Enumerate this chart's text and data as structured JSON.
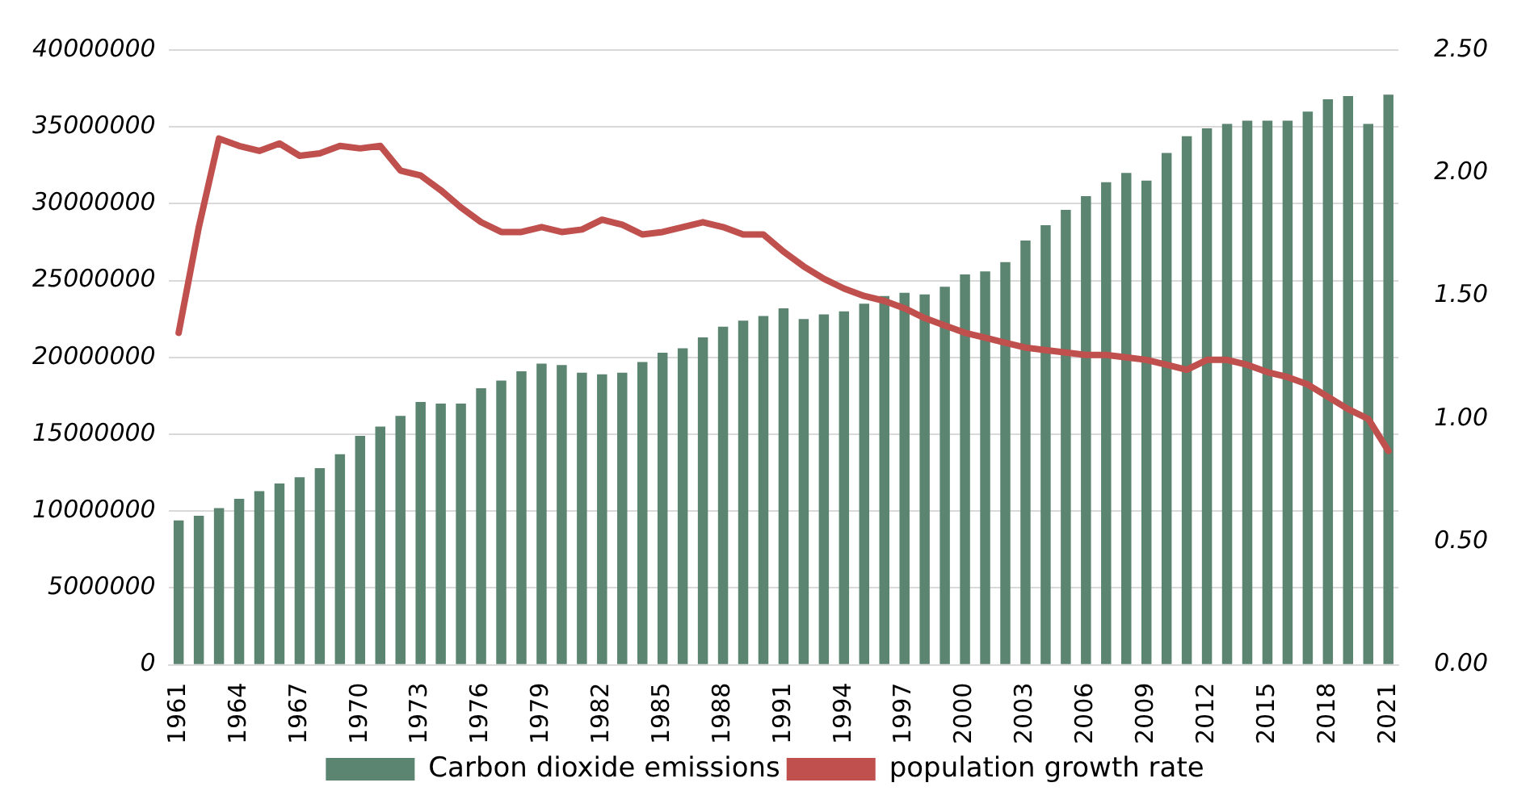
{
  "chart_data": {
    "type": "bar",
    "categories": [
      "1961",
      null,
      null,
      "1964",
      null,
      null,
      "1967",
      null,
      null,
      "1970",
      null,
      null,
      "1973",
      null,
      null,
      "1976",
      null,
      null,
      "1979",
      null,
      null,
      "1982",
      null,
      null,
      "1985",
      null,
      null,
      "1988",
      null,
      null,
      "1991",
      null,
      null,
      "1994",
      null,
      null,
      "1997",
      null,
      null,
      "2000",
      null,
      null,
      "2003",
      null,
      null,
      "2006",
      null,
      null,
      "2009",
      null,
      null,
      "2012",
      null,
      null,
      "2015",
      null,
      null,
      "2018",
      null,
      null,
      "2021"
    ],
    "series": [
      {
        "name": "Carbon dioxide emissions",
        "color": "#5b8570",
        "values": [
          9400000,
          9700000,
          10200000,
          10800000,
          11300000,
          11800000,
          12200000,
          12800000,
          13700000,
          14900000,
          15500000,
          16200000,
          17100000,
          17000000,
          17000000,
          18000000,
          18500000,
          19100000,
          19600000,
          19500000,
          19000000,
          18900000,
          19000000,
          19700000,
          20300000,
          20600000,
          21300000,
          22000000,
          22400000,
          22700000,
          23200000,
          22500000,
          22800000,
          23000000,
          23500000,
          24000000,
          24200000,
          24100000,
          24600000,
          25400000,
          25600000,
          26200000,
          27600000,
          28600000,
          29600000,
          30500000,
          31400000,
          32000000,
          31500000,
          33300000,
          34400000,
          34900000,
          35200000,
          35400000,
          35400000,
          35400000,
          36000000,
          36800000,
          37000000,
          35200000,
          37100000
        ]
      },
      {
        "name": "population growth rate",
        "type": "line",
        "axis": "y2",
        "color": "#c0504d",
        "values": [
          1.35,
          1.78,
          2.14,
          2.11,
          2.09,
          2.12,
          2.07,
          2.08,
          2.11,
          2.1,
          2.11,
          2.01,
          1.99,
          1.93,
          1.86,
          1.8,
          1.76,
          1.76,
          1.78,
          1.76,
          1.77,
          1.81,
          1.79,
          1.75,
          1.76,
          1.78,
          1.8,
          1.78,
          1.75,
          1.75,
          1.68,
          1.62,
          1.57,
          1.53,
          1.5,
          1.48,
          1.45,
          1.41,
          1.38,
          1.35,
          1.33,
          1.31,
          1.29,
          1.28,
          1.27,
          1.26,
          1.26,
          1.25,
          1.24,
          1.22,
          1.2,
          1.24,
          1.24,
          1.22,
          1.19,
          1.17,
          1.14,
          1.09,
          1.04,
          1.0,
          0.87
        ]
      }
    ],
    "ylim": [
      0,
      40000000
    ],
    "yticks": [
      0,
      5000000,
      10000000,
      15000000,
      20000000,
      25000000,
      30000000,
      35000000,
      40000000
    ],
    "y2lim": [
      0,
      2.5
    ],
    "y2ticks": [
      {
        "value": 0,
        "label": "0.00"
      },
      {
        "value": 0.5,
        "label": "0.50"
      },
      {
        "value": 1,
        "label": "1.00"
      },
      {
        "value": 1.5,
        "label": "1.50"
      },
      {
        "value": 2,
        "label": "2.00"
      },
      {
        "value": 2.5,
        "label": "2.50"
      }
    ],
    "grid": "y",
    "legend": "bottom",
    "marker": "none",
    "line_style": "solid"
  }
}
